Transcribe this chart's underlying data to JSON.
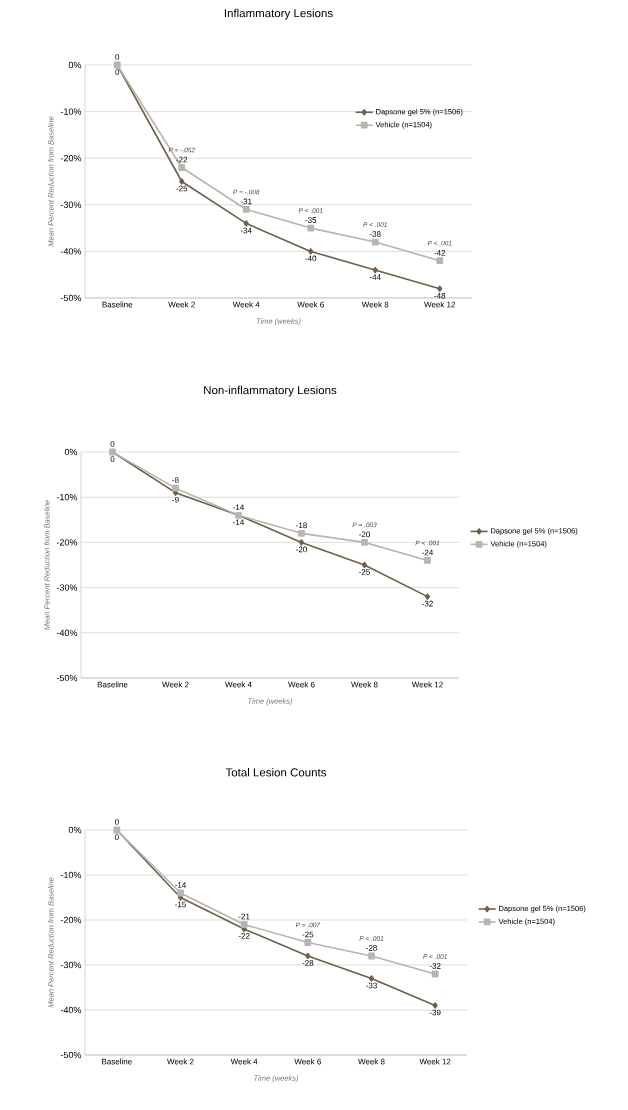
{
  "chart_data": [
    {
      "type": "line",
      "title": "Inflammatory Lesions",
      "xlabel": "Time (weeks)",
      "ylabel": "Mean Percent Reduction from Baseline",
      "categories": [
        "Baseline",
        "Week 2",
        "Week 4",
        "Week 6",
        "Week 8",
        "Week 12"
      ],
      "series": [
        {
          "name": "Dapsone gel 5% (n=1506)",
          "color": "#6e5f49",
          "marker": "diamond",
          "values": [
            0,
            -25,
            -34,
            -40,
            -44,
            -48
          ]
        },
        {
          "name": "Vehicle (n=1504)",
          "color": "#b8b5b0",
          "marker": "square",
          "values": [
            0,
            -22,
            -31,
            -35,
            -38,
            -42
          ]
        }
      ],
      "ylim": [
        -50,
        0
      ],
      "yticks": [
        {
          "value": -50,
          "label": "-50%"
        },
        {
          "value": -40,
          "label": "-40%"
        },
        {
          "value": -30,
          "label": "-30%"
        },
        {
          "value": -20,
          "label": "-20%"
        },
        {
          "value": -10,
          "label": "-10%"
        },
        {
          "value": 0,
          "label": "0%"
        }
      ],
      "grid": "y",
      "legend": "top right",
      "data_labels": true,
      "annotations": [
        {
          "text": "P = -.052",
          "x": "Week 2",
          "y": -22
        },
        {
          "text": "P = -.008",
          "x": "Week 4",
          "y": -31
        },
        {
          "text": "P < .001",
          "x": "Week 6",
          "y": -35
        },
        {
          "text": "P < .001",
          "x": "Week 8",
          "y": -38
        },
        {
          "text": "P < .001",
          "x": "Week 12",
          "y": -42
        }
      ]
    },
    {
      "type": "line",
      "title": "Non-inflammatory Lesions",
      "xlabel": "Time (weeks)",
      "ylabel": "Mean Percent Reduction from Baseline",
      "categories": [
        "Baseline",
        "Week 2",
        "Week 4",
        "Week 6",
        "Week 8",
        "Week 12"
      ],
      "series": [
        {
          "name": "Dapsone gel 5% (n=1506)",
          "color": "#6e5f49",
          "marker": "diamond",
          "values": [
            0,
            -9,
            -14,
            -20,
            -25,
            -32
          ]
        },
        {
          "name": "Vehicle (n=1504)",
          "color": "#b8b5b0",
          "marker": "square",
          "values": [
            0,
            -8,
            -14,
            -18,
            -20,
            -24
          ]
        }
      ],
      "ylim": [
        -50,
        0
      ],
      "yticks": [
        {
          "value": -50,
          "label": "-50%"
        },
        {
          "value": -40,
          "label": "-40%"
        },
        {
          "value": -30,
          "label": "-30%"
        },
        {
          "value": -20,
          "label": "-20%"
        },
        {
          "value": -10,
          "label": "-10%"
        },
        {
          "value": 0,
          "label": "0%"
        }
      ],
      "grid": "y",
      "legend": "right",
      "data_labels": true,
      "annotations": [
        {
          "text": "P = .003",
          "x": "Week 8",
          "y": -20
        },
        {
          "text": "P < .001",
          "x": "Week 12",
          "y": -24
        }
      ]
    },
    {
      "type": "line",
      "title": "Total Lesion Counts",
      "xlabel": "Time (weeks)",
      "ylabel": "Mean Percent Reduction from Baseline",
      "categories": [
        "Baseline",
        "Week 2",
        "Week 4",
        "Week 6",
        "Week 8",
        "Week 12"
      ],
      "series": [
        {
          "name": "Dapsone gel 5% (n=1506)",
          "color": "#6e5f49",
          "marker": "diamond",
          "values": [
            0,
            -15,
            -22,
            -28,
            -33,
            -39
          ]
        },
        {
          "name": "Vehicle (n=1504)",
          "color": "#b8b5b0",
          "marker": "square",
          "values": [
            0,
            -14,
            -21,
            -25,
            -28,
            -32
          ]
        }
      ],
      "ylim": [
        -50,
        0
      ],
      "yticks": [
        {
          "value": -50,
          "label": "-50%"
        },
        {
          "value": -40,
          "label": "-40%"
        },
        {
          "value": -30,
          "label": "-30%"
        },
        {
          "value": -20,
          "label": "-20%"
        },
        {
          "value": -10,
          "label": "-10%"
        },
        {
          "value": 0,
          "label": "0%"
        }
      ],
      "grid": "y",
      "legend": "right",
      "data_labels": true,
      "annotations": [
        {
          "text": "P = .007",
          "x": "Week 6",
          "y": -25
        },
        {
          "text": "P < .001",
          "x": "Week 8",
          "y": -28
        },
        {
          "text": "P < .001",
          "x": "Week 12",
          "y": -32
        }
      ]
    }
  ]
}
